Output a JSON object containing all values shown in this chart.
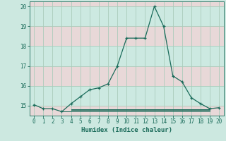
{
  "xlabel": "Humidex (Indice chaleur)",
  "background_color": "#cce8e0",
  "grid_color": "#aaccbb",
  "band_color_odd": "#ddeee8",
  "band_color_even": "#eedddd",
  "line_color": "#1a6b5a",
  "xlim": [
    -0.5,
    20.5
  ],
  "ylim": [
    14.5,
    20.25
  ],
  "xticks": [
    0,
    1,
    2,
    3,
    4,
    5,
    6,
    7,
    8,
    9,
    10,
    11,
    12,
    13,
    14,
    15,
    16,
    17,
    18,
    19,
    20
  ],
  "yticks": [
    15,
    16,
    17,
    18,
    19,
    20
  ],
  "main_x": [
    0,
    1,
    2,
    3,
    4,
    5,
    6,
    7,
    8,
    9,
    10,
    11,
    12,
    13,
    14,
    15,
    16,
    17,
    18,
    19,
    20
  ],
  "main_y": [
    15.05,
    14.85,
    14.85,
    14.7,
    15.1,
    15.45,
    15.8,
    15.9,
    16.1,
    17.0,
    18.4,
    18.4,
    18.4,
    20.0,
    19.0,
    16.5,
    16.2,
    15.4,
    15.1,
    14.85,
    14.9
  ],
  "flat_lines": [
    {
      "x": [
        3,
        19
      ],
      "y": [
        14.72,
        14.72
      ]
    },
    {
      "x": [
        4,
        19
      ],
      "y": [
        14.77,
        14.77
      ]
    },
    {
      "x": [
        4,
        19
      ],
      "y": [
        14.82,
        14.82
      ]
    }
  ],
  "band_ranges": [
    [
      15.0,
      16.0
    ],
    [
      16.0,
      17.0
    ],
    [
      17.0,
      18.0
    ],
    [
      18.0,
      19.0
    ],
    [
      19.0,
      20.0
    ],
    [
      20.0,
      20.25
    ]
  ],
  "band_colors": [
    "#cce9e1",
    "#e8d8d8",
    "#cce9e1",
    "#e8d8d8",
    "#cce9e1",
    "#e8d8d8"
  ]
}
